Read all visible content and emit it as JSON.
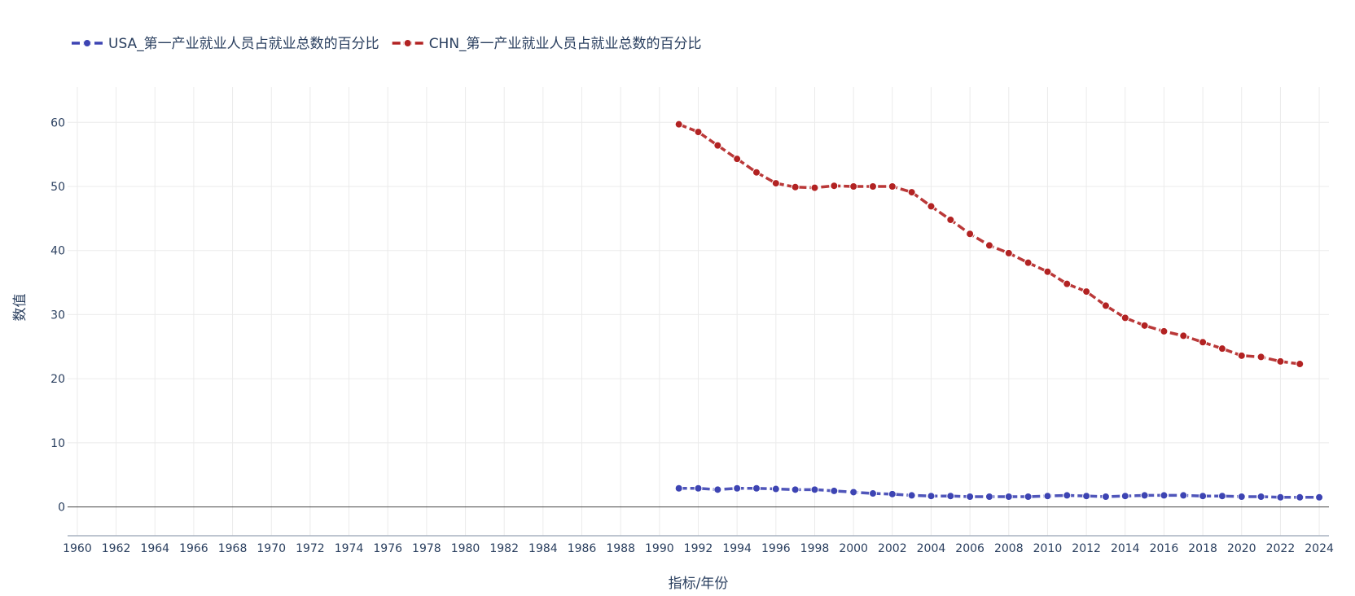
{
  "chart_data": {
    "type": "line",
    "xlabel": "指标/年份",
    "ylabel": "数值",
    "xlim": [
      1959.5,
      2024.5
    ],
    "ylim": [
      -4.5,
      65.5
    ],
    "x_ticks": [
      1960,
      1962,
      1964,
      1966,
      1968,
      1970,
      1972,
      1974,
      1976,
      1978,
      1980,
      1982,
      1984,
      1986,
      1988,
      1990,
      1992,
      1994,
      1996,
      1998,
      2000,
      2002,
      2004,
      2006,
      2008,
      2010,
      2012,
      2014,
      2016,
      2018,
      2020,
      2022,
      2024
    ],
    "y_ticks": [
      0,
      10,
      20,
      30,
      40,
      50,
      60
    ],
    "grid": true,
    "legend_position": "top-left",
    "series": [
      {
        "name": "USA_第一产业就业人员占就业总数的百分比",
        "color": "#3d44b3",
        "x": [
          1991,
          1992,
          1993,
          1994,
          1995,
          1996,
          1997,
          1998,
          1999,
          2000,
          2001,
          2002,
          2003,
          2004,
          2005,
          2006,
          2007,
          2008,
          2009,
          2010,
          2011,
          2012,
          2013,
          2014,
          2015,
          2016,
          2017,
          2018,
          2019,
          2020,
          2021,
          2022,
          2023,
          2024
        ],
        "values": [
          2.9,
          2.9,
          2.7,
          2.9,
          2.9,
          2.8,
          2.7,
          2.7,
          2.5,
          2.3,
          2.1,
          2.0,
          1.8,
          1.7,
          1.7,
          1.6,
          1.6,
          1.6,
          1.6,
          1.7,
          1.8,
          1.7,
          1.6,
          1.7,
          1.8,
          1.8,
          1.8,
          1.7,
          1.7,
          1.6,
          1.6,
          1.5,
          1.5,
          1.5
        ]
      },
      {
        "name": "CHN_第一产业就业人员占就业总数的百分比",
        "color": "#b22222",
        "x": [
          1991,
          1992,
          1993,
          1994,
          1995,
          1996,
          1997,
          1998,
          1999,
          2000,
          2001,
          2002,
          2003,
          2004,
          2005,
          2006,
          2007,
          2008,
          2009,
          2010,
          2011,
          2012,
          2013,
          2014,
          2015,
          2016,
          2017,
          2018,
          2019,
          2020,
          2021,
          2022,
          2023
        ],
        "values": [
          59.7,
          58.5,
          56.4,
          54.3,
          52.2,
          50.5,
          49.9,
          49.8,
          50.1,
          50.0,
          50.0,
          50.0,
          49.1,
          46.9,
          44.8,
          42.6,
          40.8,
          39.6,
          38.1,
          36.7,
          34.8,
          33.6,
          31.4,
          29.5,
          28.3,
          27.4,
          26.7,
          25.7,
          24.7,
          23.6,
          23.4,
          22.7,
          22.3
        ]
      }
    ]
  }
}
